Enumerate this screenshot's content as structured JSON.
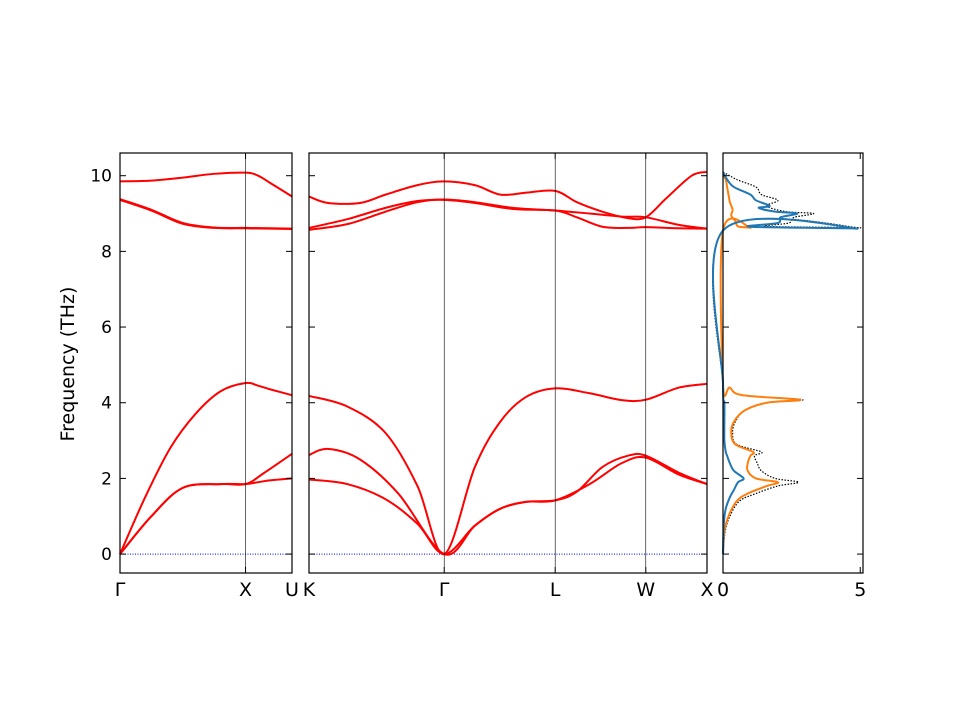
{
  "chart_data": {
    "type": "line",
    "ylabel": "Frequency (THz)",
    "ylim": [
      -0.5,
      10.6
    ],
    "yticks": [
      0,
      2,
      4,
      6,
      8,
      10
    ],
    "band_color": "#ff0000",
    "zero_line_color": "#0000ff",
    "panels": [
      {
        "id": "gamma-x-u",
        "xlim": [
          0,
          1.37
        ],
        "xticks": [
          {
            "x": 0,
            "label": "Γ"
          },
          {
            "x": 1.0,
            "label": "X"
          },
          {
            "x": 1.37,
            "label": "U"
          }
        ],
        "bands": [
          {
            "name": "",
            "x": [
              0,
              0.25,
              0.5,
              0.8,
              1.0,
              1.1,
              1.2,
              1.37
            ],
            "y": [
              0,
              1.0,
              1.75,
              1.85,
              1.85,
              1.9,
              1.95,
              2.0
            ]
          },
          {
            "name": "",
            "x": [
              0,
              0.25,
              0.5,
              0.8,
              1.0,
              1.15,
              1.37
            ],
            "y": [
              0,
              1.0,
              1.75,
              1.85,
              1.85,
              2.15,
              2.65
            ]
          },
          {
            "name": "",
            "x": [
              0,
              0.2,
              0.4,
              0.6,
              0.8,
              1.0,
              1.1,
              1.2,
              1.37
            ],
            "y": [
              0,
              1.5,
              2.8,
              3.7,
              4.3,
              4.52,
              4.45,
              4.35,
              4.2
            ]
          },
          {
            "name": "",
            "x": [
              0,
              0.25,
              0.5,
              0.75,
              1.0,
              1.2,
              1.37
            ],
            "y": [
              9.38,
              9.1,
              8.75,
              8.63,
              8.62,
              8.61,
              8.6
            ]
          },
          {
            "name": "",
            "x": [
              0,
              0.25,
              0.5,
              0.75,
              1.0,
              1.2,
              1.37
            ],
            "y": [
              9.36,
              9.08,
              8.73,
              8.62,
              8.61,
              8.6,
              8.59
            ]
          },
          {
            "name": "",
            "x": [
              0,
              0.25,
              0.5,
              0.75,
              1.0,
              1.1,
              1.2,
              1.37
            ],
            "y": [
              9.85,
              9.87,
              9.95,
              10.05,
              10.08,
              10.0,
              9.8,
              9.45
            ]
          }
        ]
      },
      {
        "id": "k-gamma-l-w-x",
        "xlim": [
          0,
          3.12
        ],
        "xticks": [
          {
            "x": 0,
            "label": "K"
          },
          {
            "x": 1.06,
            "label": "Γ"
          },
          {
            "x": 1.93,
            "label": "L"
          },
          {
            "x": 2.64,
            "label": "W"
          },
          {
            "x": 3.12,
            "label": "X"
          }
        ],
        "bands": [
          {
            "name": "",
            "x": [
              0,
              0.3,
              0.6,
              0.85,
              1.06,
              1.3,
              1.5,
              1.7,
              1.93,
              2.2,
              2.45,
              2.64,
              2.9,
              3.12
            ],
            "y": [
              1.97,
              1.85,
              1.45,
              0.8,
              0,
              0.75,
              1.2,
              1.38,
              1.42,
              1.85,
              2.4,
              2.55,
              2.1,
              1.85
            ]
          },
          {
            "name": "",
            "x": [
              0,
              0.15,
              0.4,
              0.7,
              1.06,
              1.3,
              1.5,
              1.7,
              1.93,
              2.1,
              2.3,
              2.5,
              2.64,
              2.9,
              3.12
            ],
            "y": [
              2.62,
              2.78,
              2.5,
              1.6,
              0,
              0.75,
              1.2,
              1.38,
              1.42,
              1.65,
              2.3,
              2.6,
              2.6,
              2.15,
              1.85
            ]
          },
          {
            "name": "",
            "x": [
              0,
              0.3,
              0.6,
              0.85,
              1.06,
              1.3,
              1.5,
              1.7,
              1.93,
              2.2,
              2.45,
              2.64,
              2.9,
              3.12
            ],
            "y": [
              4.18,
              3.9,
              3.2,
              1.8,
              0,
              2.3,
              3.5,
              4.15,
              4.38,
              4.25,
              4.07,
              4.08,
              4.4,
              4.5
            ]
          },
          {
            "name": "",
            "x": [
              0,
              0.3,
              0.6,
              0.85,
              1.06,
              1.3,
              1.6,
              1.93,
              2.2,
              2.45,
              2.64,
              2.9,
              3.12
            ],
            "y": [
              8.57,
              8.72,
              9.05,
              9.3,
              9.37,
              9.3,
              9.15,
              9.08,
              9.0,
              8.92,
              8.9,
              8.7,
              8.6
            ]
          },
          {
            "name": "",
            "x": [
              0,
              0.3,
              0.6,
              0.85,
              1.06,
              1.3,
              1.6,
              1.93,
              2.1,
              2.3,
              2.5,
              2.64,
              2.9,
              3.12
            ],
            "y": [
              8.62,
              8.85,
              9.15,
              9.33,
              9.36,
              9.28,
              9.12,
              9.08,
              8.9,
              8.65,
              8.62,
              8.64,
              8.61,
              8.6
            ]
          },
          {
            "name": "",
            "x": [
              0,
              0.15,
              0.4,
              0.6,
              0.85,
              1.06,
              1.3,
              1.5,
              1.7,
              1.93,
              2.1,
              2.3,
              2.5,
              2.64,
              2.8,
              3.0,
              3.12
            ],
            "y": [
              9.45,
              9.28,
              9.28,
              9.5,
              9.75,
              9.85,
              9.75,
              9.5,
              9.55,
              9.6,
              9.3,
              9.05,
              8.88,
              8.9,
              9.4,
              10.0,
              10.1
            ]
          }
        ]
      },
      {
        "id": "dos",
        "xlim": [
          0,
          5.1
        ],
        "xticks": [
          {
            "x": 0,
            "label": "0"
          },
          {
            "x": 5,
            "label": "5"
          }
        ],
        "curves": [
          {
            "name": "",
            "color": "#000000",
            "style": "dotted",
            "y": [
              0,
              0.6,
              1.0,
              1.4,
              1.6,
              1.8,
              1.9,
              2.0,
              2.2,
              2.4,
              2.6,
              2.7,
              2.9,
              3.2,
              3.5,
              3.8,
              4.0,
              4.08,
              4.2,
              4.4,
              4.5,
              8.55,
              8.62,
              8.66,
              8.75,
              8.9,
              9.0,
              9.05,
              9.2,
              9.35,
              9.5,
              9.7,
              9.9,
              10.1
            ],
            "x": [
              0,
              0.08,
              0.25,
              0.6,
              1.2,
              2.0,
              2.75,
              1.9,
              1.4,
              1.25,
              1.15,
              1.4,
              0.5,
              0.35,
              0.45,
              0.8,
              1.6,
              2.9,
              0.7,
              0.25,
              0,
              0,
              5.0,
              1.6,
              2.4,
              2.6,
              3.3,
              2.3,
              1.6,
              2.0,
              1.4,
              1.2,
              0.5,
              0
            ]
          },
          {
            "name": "",
            "color": "#ff7f0e",
            "style": "solid",
            "y": [
              0,
              0.6,
              1.0,
              1.4,
              1.6,
              1.8,
              1.9,
              2.0,
              2.2,
              2.4,
              2.6,
              2.7,
              2.9,
              3.2,
              3.5,
              3.8,
              4.0,
              4.08,
              4.2,
              4.4,
              4.5,
              8.55,
              8.62,
              8.66,
              8.8,
              8.95,
              9.1,
              9.3,
              9.5,
              9.7,
              9.9,
              10.0
            ],
            "x": [
              0,
              0.05,
              0.2,
              0.5,
              0.9,
              1.6,
              2.0,
              1.2,
              0.9,
              0.9,
              1.0,
              1.1,
              0.45,
              0.3,
              0.4,
              0.8,
              1.6,
              2.8,
              0.7,
              0.25,
              0,
              0,
              1.0,
              0.55,
              0.45,
              0.3,
              0.35,
              0.25,
              0.2,
              0.15,
              0.1,
              0
            ]
          },
          {
            "name": "",
            "color": "#1f77b4",
            "style": "solid",
            "y": [
              0,
              0.8,
              1.2,
              1.5,
              1.7,
              1.9,
              2.0,
              2.2,
              2.4,
              2.6,
              2.7,
              3.0,
              3.5,
              4.0,
              4.5,
              8.55,
              8.6,
              8.65,
              8.75,
              8.9,
              9.0,
              9.05,
              9.15,
              9.2,
              9.35,
              9.5,
              9.7,
              9.9,
              10.1
            ],
            "x": [
              0,
              0.03,
              0.1,
              0.25,
              0.4,
              0.55,
              0.75,
              0.4,
              0.25,
              0.15,
              0.1,
              0.05,
              0.05,
              0.05,
              0,
              0,
              4.9,
              1.0,
              2.0,
              2.1,
              2.7,
              1.9,
              1.3,
              1.7,
              1.2,
              1.0,
              0.4,
              0.15,
              0
            ]
          }
        ]
      }
    ]
  }
}
